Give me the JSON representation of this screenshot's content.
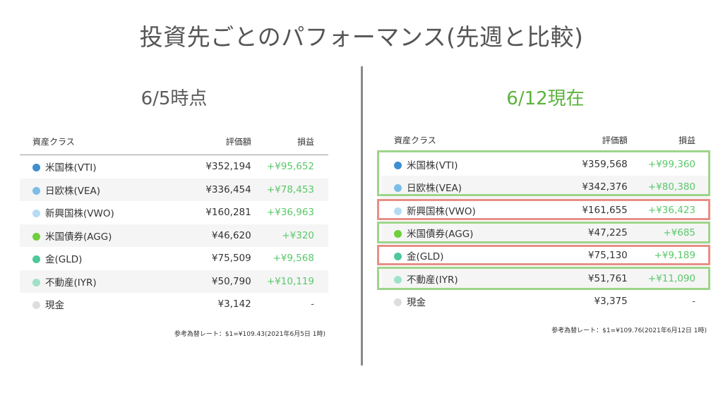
{
  "page_title": "投資先ごとのパフォーマンス(先週と比較)",
  "colors": {
    "green_box": "#9ed58a",
    "red_box": "#e88f86",
    "positive_text": "#5ac86a",
    "right_heading": "#5cb33e"
  },
  "left": {
    "heading": "6/5時点",
    "headers": {
      "asset": "資産クラス",
      "value": "評価額",
      "pnl": "損益"
    },
    "rows": [
      {
        "name": "米国株(VTI)",
        "value": "¥352,194",
        "pnl": "+¥95,652",
        "dot": "#3d8fd1"
      },
      {
        "name": "日欧株(VEA)",
        "value": "¥336,454",
        "pnl": "+¥78,453",
        "dot": "#7bbde8"
      },
      {
        "name": "新興国株(VWO)",
        "value": "¥160,281",
        "pnl": "+¥36,963",
        "dot": "#b5dcf4"
      },
      {
        "name": "米国債券(AGG)",
        "value": "¥46,620",
        "pnl": "+¥320",
        "dot": "#6fcf3c"
      },
      {
        "name": "金(GLD)",
        "value": "¥75,509",
        "pnl": "+¥9,568",
        "dot": "#4cc89a"
      },
      {
        "name": "不動産(IYR)",
        "value": "¥50,790",
        "pnl": "+¥10,119",
        "dot": "#9fe2c8"
      },
      {
        "name": "現金",
        "value": "¥3,142",
        "pnl": "-",
        "dot": "#dddddd"
      }
    ],
    "note": "参考為替レート：$1=¥109.43(2021年6月5日 1時)"
  },
  "right": {
    "heading": "6/12現在",
    "headers": {
      "asset": "資産クラス",
      "value": "評価額",
      "pnl": "損益"
    },
    "rows": [
      {
        "name": "米国株(VTI)",
        "value": "¥359,568",
        "pnl": "+¥99,360",
        "dot": "#3d8fd1"
      },
      {
        "name": "日欧株(VEA)",
        "value": "¥342,376",
        "pnl": "+¥80,380",
        "dot": "#7bbde8"
      },
      {
        "name": "新興国株(VWO)",
        "value": "¥161,655",
        "pnl": "+¥36,423",
        "dot": "#b5dcf4"
      },
      {
        "name": "米国債券(AGG)",
        "value": "¥47,225",
        "pnl": "+¥685",
        "dot": "#6fcf3c"
      },
      {
        "name": "金(GLD)",
        "value": "¥75,130",
        "pnl": "+¥9,189",
        "dot": "#4cc89a"
      },
      {
        "name": "不動産(IYR)",
        "value": "¥51,761",
        "pnl": "+¥11,090",
        "dot": "#9fe2c8"
      },
      {
        "name": "現金",
        "value": "¥3,375",
        "pnl": "-",
        "dot": "#dddddd"
      }
    ],
    "note": "参考為替レート：$1=¥109.76(2021年6月12日 1時)"
  }
}
